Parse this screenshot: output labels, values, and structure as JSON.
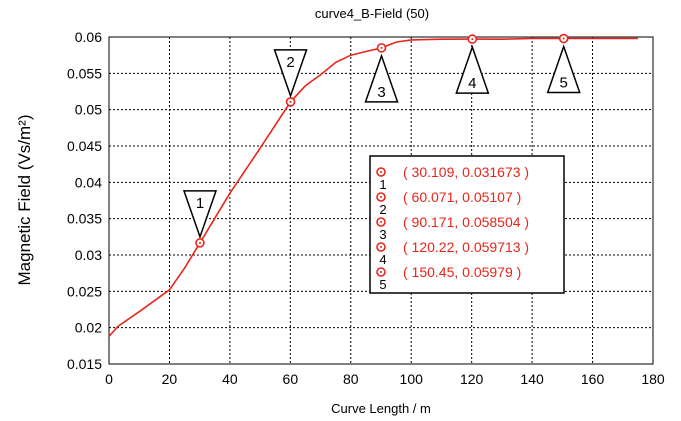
{
  "chart_data": {
    "type": "line",
    "title": "curve4_B-Field (50)",
    "xlabel": "Curve Length / m",
    "ylabel": "Magnetic Field (Vs/m²)",
    "xlim": [
      0,
      180
    ],
    "ylim": [
      0.015,
      0.06
    ],
    "x_ticks": [
      0,
      20,
      40,
      60,
      80,
      100,
      120,
      140,
      160,
      180
    ],
    "y_ticks": [
      0.015,
      0.02,
      0.025,
      0.03,
      0.035,
      0.04,
      0.045,
      0.05,
      0.055,
      0.06
    ],
    "x_tick_labels": [
      "0",
      "20",
      "40",
      "60",
      "80",
      "100",
      "120",
      "140",
      "160",
      "180"
    ],
    "y_tick_labels": [
      "0.015",
      "0.02",
      "0.025",
      "0.03",
      "0.035",
      "0.04",
      "0.045",
      "0.05",
      "0.055",
      "0.06"
    ],
    "grid": true,
    "line_color": "#e8251b",
    "series": [
      {
        "x": [
          0,
          3,
          10,
          20,
          25,
          30.109,
          40,
          50,
          60.071,
          65,
          70,
          75,
          80,
          85,
          90.171,
          95,
          100,
          110,
          120.22,
          130,
          140,
          150.45,
          160,
          175
        ],
        "values": [
          0.0188,
          0.0202,
          0.0222,
          0.0252,
          0.0282,
          0.031673,
          0.0385,
          0.0447,
          0.05107,
          0.0533,
          0.0548,
          0.0565,
          0.0575,
          0.058,
          0.058504,
          0.0593,
          0.0596,
          0.0597,
          0.059713,
          0.0597,
          0.0598,
          0.05979,
          0.0598,
          0.0598
        ]
      }
    ],
    "markers": [
      {
        "id": "1",
        "x": 30.109,
        "y": 0.031673,
        "label": "( 30.109, 0.031673 )",
        "pointer": "down"
      },
      {
        "id": "2",
        "x": 60.071,
        "y": 0.05107,
        "label": "( 60.071, 0.05107 )",
        "pointer": "down"
      },
      {
        "id": "3",
        "x": 90.171,
        "y": 0.058504,
        "label": "( 90.171, 0.058504 )",
        "pointer": "up"
      },
      {
        "id": "4",
        "x": 120.22,
        "y": 0.059713,
        "label": "( 120.22, 0.059713 )",
        "pointer": "up"
      },
      {
        "id": "5",
        "x": 150.45,
        "y": 0.05979,
        "label": "( 150.45, 0.05979 )",
        "pointer": "up"
      }
    ],
    "legend_placement": "center-right"
  }
}
